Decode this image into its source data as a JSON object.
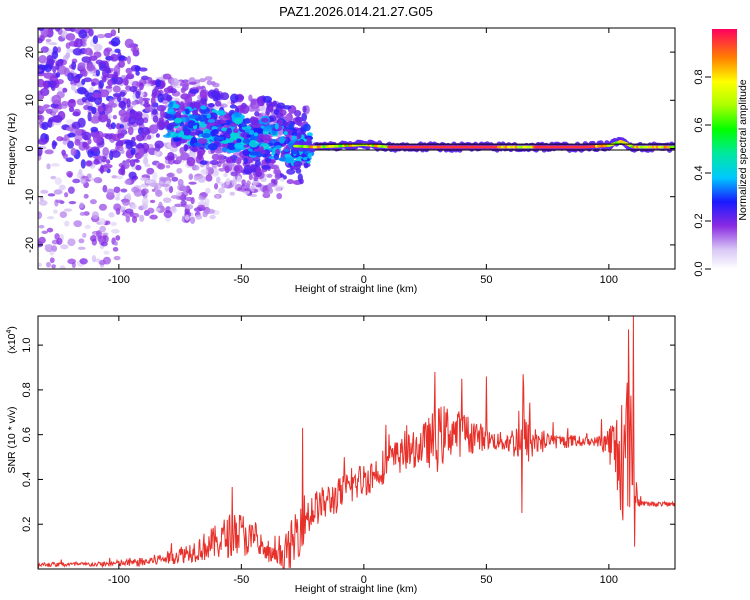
{
  "title": "PAZ1.2026.014.21.27.G05",
  "chart_data": [
    {
      "type": "heatmap",
      "xlabel": "Height of straight line (km)",
      "ylabel": "Frequency (Hz)",
      "xlim": [
        -133,
        127
      ],
      "ylim": [
        -25,
        25
      ],
      "xticks": [
        -100,
        -50,
        0,
        50,
        100
      ],
      "yticks": [
        -20,
        -10,
        0,
        10,
        20
      ],
      "colorbar": {
        "label": "Normalized spectral amplitude",
        "range": [
          0,
          1
        ],
        "ticks": [
          "0.0",
          "0.2",
          "0.4",
          "0.6",
          "0.8"
        ]
      },
      "ridge": {
        "description_points_x": [
          -95,
          -80,
          -65,
          -55,
          -45,
          -35,
          -28,
          -20,
          -10,
          0,
          10,
          30,
          50,
          70,
          90,
          100,
          105,
          110,
          127
        ],
        "frequency_hz": [
          8,
          6,
          4.5,
          3.5,
          2.5,
          2,
          0.5,
          0.3,
          0.5,
          0.8,
          0.3,
          0.3,
          0.3,
          0.3,
          0.3,
          0.6,
          1.5,
          0.3,
          0.3
        ]
      }
    },
    {
      "type": "line",
      "xlabel": "Height of straight line (km)",
      "ylabel": "SNR (10 * v/v)",
      "y_scale_label": "(x10",
      "y_scale_exp": "4",
      "y_scale_close": ")",
      "xlim": [
        -133,
        127
      ],
      "ylim": [
        0,
        1.13
      ],
      "xticks": [
        -100,
        -50,
        0,
        50,
        100
      ],
      "yticks": [
        "0.2",
        "0.4",
        "0.6",
        "0.8",
        "1.0"
      ],
      "series": [
        {
          "name": "SNR",
          "color": "#e8302a",
          "x": [
            -133,
            -110,
            -90,
            -80,
            -70,
            -60,
            -55,
            -50,
            -45,
            -40,
            -35,
            -30,
            -27,
            -25,
            -22,
            -20,
            -15,
            -10,
            -5,
            0,
            5,
            10,
            20,
            25,
            30,
            35,
            40,
            45,
            50,
            55,
            60,
            65,
            70,
            75,
            80,
            85,
            90,
            95,
            100,
            103,
            106,
            108,
            110,
            112,
            115,
            120,
            127
          ],
          "y": [
            0.02,
            0.02,
            0.03,
            0.05,
            0.08,
            0.12,
            0.15,
            0.16,
            0.12,
            0.07,
            0.05,
            0.08,
            0.18,
            0.22,
            0.25,
            0.27,
            0.3,
            0.33,
            0.37,
            0.4,
            0.43,
            0.48,
            0.53,
            0.56,
            0.58,
            0.62,
            0.6,
            0.6,
            0.58,
            0.57,
            0.57,
            0.57,
            0.57,
            0.57,
            0.57,
            0.57,
            0.57,
            0.57,
            0.57,
            0.52,
            0.45,
            0.6,
            0.4,
            0.3,
            0.29,
            0.29,
            0.29
          ],
          "noise": [
            0.01,
            0.01,
            0.02,
            0.03,
            0.05,
            0.08,
            0.1,
            0.1,
            0.08,
            0.04,
            0.04,
            0.12,
            0.14,
            0.12,
            0.1,
            0.08,
            0.08,
            0.08,
            0.08,
            0.08,
            0.08,
            0.08,
            0.08,
            0.1,
            0.15,
            0.12,
            0.1,
            0.08,
            0.05,
            0.04,
            0.06,
            0.12,
            0.08,
            0.04,
            0.03,
            0.03,
            0.02,
            0.02,
            0.08,
            0.2,
            0.25,
            0.35,
            0.25,
            0.02,
            0.01,
            0.01,
            0.01
          ]
        }
      ]
    }
  ]
}
